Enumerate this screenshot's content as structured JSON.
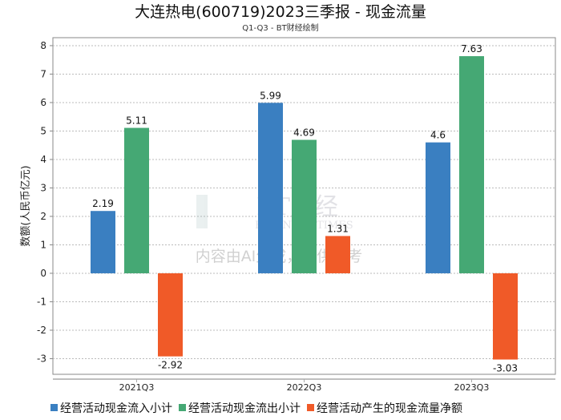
{
  "chart_data": {
    "type": "bar",
    "title": "大连热电(600719)2023三季报 - 现金流量",
    "subtitle": "Q1-Q3 - BT财经绘制",
    "xlabel": "",
    "ylabel": "数额(人民币亿元)",
    "ylim": [
      -3.55,
      8.28
    ],
    "yticks": [
      8,
      7,
      6,
      5,
      4,
      3,
      2,
      1,
      0,
      -1,
      -2,
      -3
    ],
    "grid": true,
    "legend_position": "bottom",
    "categories": [
      "2021Q3",
      "2022Q3",
      "2023Q3"
    ],
    "series": [
      {
        "name": "经营活动现金流入小计",
        "color": "#3a7fc1",
        "values": [
          2.19,
          5.99,
          4.6
        ],
        "labels": [
          "2.19",
          "5.99",
          "4.6"
        ]
      },
      {
        "name": "经营活动现金流出小计",
        "color": "#45a874",
        "values": [
          5.11,
          4.69,
          7.63
        ],
        "labels": [
          "5.11",
          "4.69",
          "7.63"
        ]
      },
      {
        "name": "经营活动产生的现金流量净额",
        "color": "#f05a28",
        "values": [
          -2.92,
          1.31,
          -3.03
        ],
        "labels": [
          "-2.92",
          "1.31",
          "-3.03"
        ]
      }
    ]
  },
  "watermark": {
    "brand": "BT财经",
    "brand_en": "BUSINESS TIMES",
    "notice": "内容由AI生成，仅供参考"
  }
}
